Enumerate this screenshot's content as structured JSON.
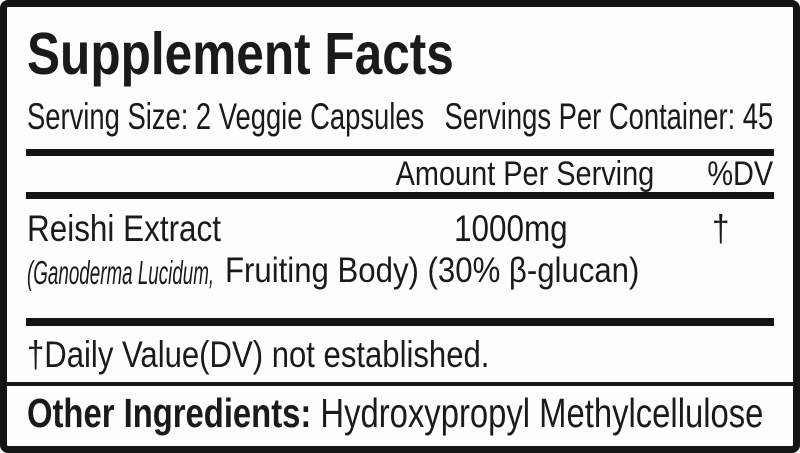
{
  "label": {
    "title": "Supplement Facts",
    "serving_row": {
      "serving_size": "Serving Size: 2 Veggie Capsules",
      "servings_per_container": "Servings Per Container: 45"
    },
    "header_row": {
      "amount_col": "Amount Per Serving",
      "dv_col": "%DV"
    },
    "ingredient_row": {
      "name": "Reishi Extract",
      "amount": "1000mg",
      "dv": "†",
      "detail_scientific": "(Ganoderma Lucidum,",
      "detail_rest": " Fruiting Body) (30% β-glucan)"
    },
    "footnote": "†Daily Value(DV) not established.",
    "other_ingredients": {
      "label": "Other Ingredients:",
      "value": " Hydroxypropyl Methylcellulose"
    },
    "colors": {
      "text": "#1a1a1a",
      "rule": "#141414",
      "border": "#141414",
      "background": "#fdfdfd"
    }
  }
}
